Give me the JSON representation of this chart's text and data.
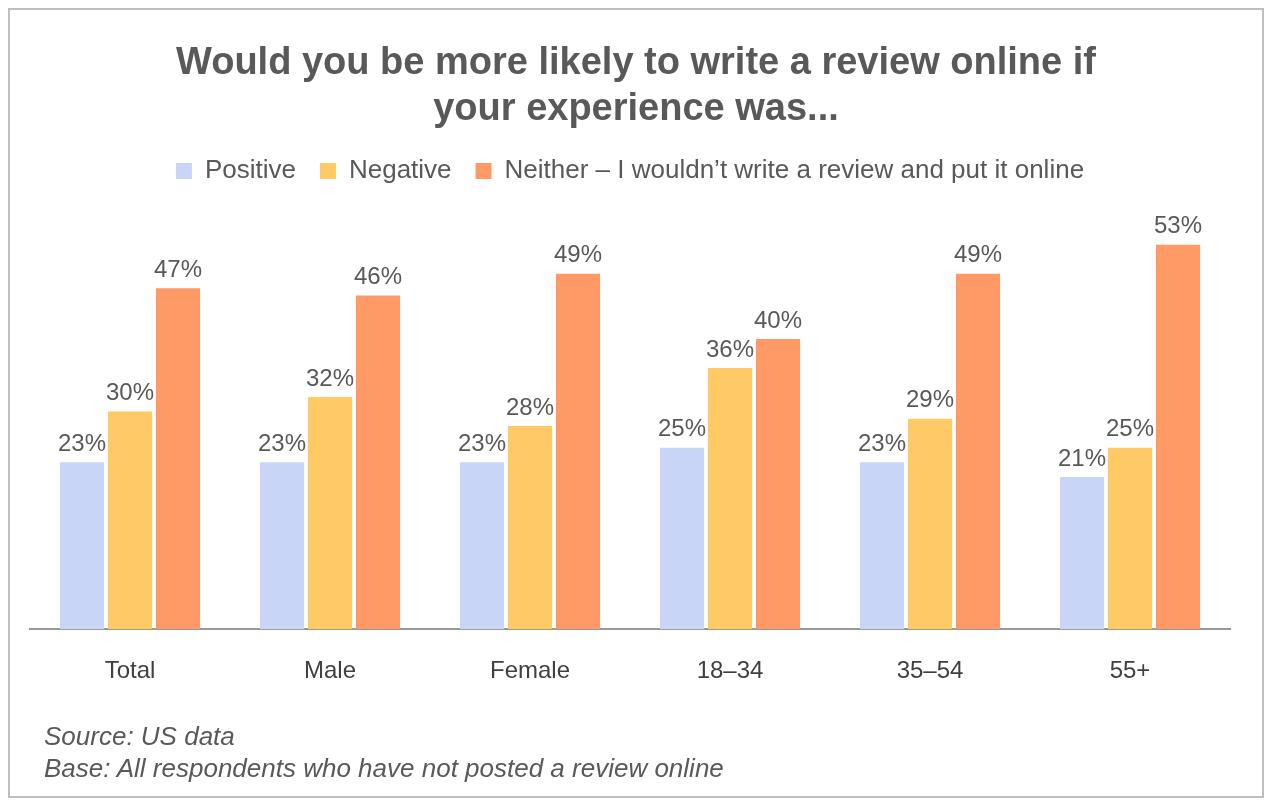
{
  "chart_data": {
    "type": "bar",
    "title": "Would you be more likely to write a review online if your experience was...",
    "categories": [
      "Total",
      "Male",
      "Female",
      "18–34",
      "35–54",
      "55+"
    ],
    "series": [
      {
        "name": "Positive",
        "color": "#c9d5f7",
        "values": [
          23,
          23,
          23,
          25,
          23,
          21
        ],
        "value_labels": [
          "23%",
          "23%",
          "23%",
          "25%",
          "23%",
          "21%"
        ]
      },
      {
        "name": "Negative",
        "color": "#ffca66",
        "values": [
          30,
          32,
          28,
          36,
          29,
          25
        ],
        "value_labels": [
          "30%",
          "32%",
          "28%",
          "36%",
          "29%",
          "25%"
        ]
      },
      {
        "name": "Neither – I wouldn’t write a review and put it online",
        "color": "#ff9966",
        "values": [
          47,
          46,
          49,
          40,
          49,
          53
        ],
        "value_labels": [
          "47%",
          "46%",
          "49%",
          "40%",
          "49%",
          "53%"
        ]
      }
    ],
    "legend": "top",
    "grid": false,
    "annotations": [
      "Source: US data",
      "Base: All respondents  who  have not posted a review online"
    ]
  }
}
